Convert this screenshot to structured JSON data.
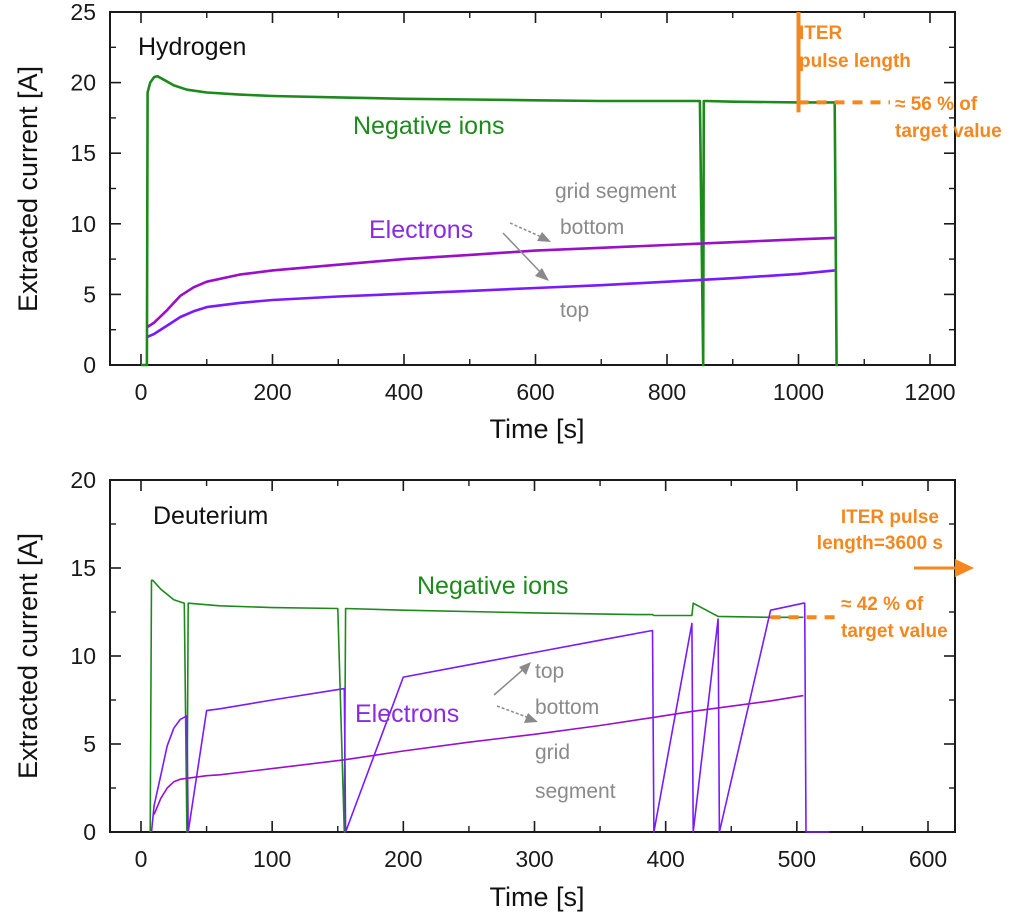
{
  "colors": {
    "negative_ions": "#1e8a1e",
    "electrons_bottom": "#9a0fc8",
    "electrons_top": "#7a1aff",
    "electrons_label": "#8a2be2",
    "grey_annotation": "#8a8a8a",
    "iter": "#f5871f",
    "axis": "#1a1a1a"
  },
  "chart_data": [
    {
      "type": "line",
      "panel_title": "Hydrogen",
      "xlabel": "Time [s]",
      "ylabel": "Extracted current [A]",
      "xlim": [
        -40,
        1260
      ],
      "ylim": [
        0,
        25
      ],
      "xticks": [
        0,
        200,
        400,
        600,
        800,
        1000,
        1200
      ],
      "xticks_minor": [
        100,
        300,
        500,
        700,
        900,
        1100
      ],
      "yticks": [
        0,
        5,
        10,
        15,
        20,
        25
      ],
      "yticks_minor": [
        2.5,
        7.5,
        12.5,
        17.5,
        22.5
      ],
      "grid": false,
      "series": [
        {
          "name": "Negative ions",
          "color_key": "negative_ions",
          "x": [
            0,
            9,
            10,
            14,
            20,
            25,
            35,
            50,
            70,
            100,
            150,
            200,
            300,
            400,
            500,
            600,
            700,
            800,
            850,
            855,
            856,
            860,
            900,
            1000,
            1055,
            1058,
            1060
          ],
          "y": [
            0,
            0,
            19.3,
            20.0,
            20.4,
            20.45,
            20.2,
            19.8,
            19.5,
            19.3,
            19.15,
            19.05,
            18.95,
            18.85,
            18.8,
            18.75,
            18.7,
            18.7,
            18.7,
            0,
            18.7,
            18.7,
            18.65,
            18.6,
            18.6,
            0,
            0
          ]
        },
        {
          "name": "Electrons bottom",
          "color_key": "electrons_bottom",
          "x": [
            10,
            20,
            40,
            60,
            80,
            100,
            150,
            200,
            300,
            400,
            500,
            600,
            700,
            800,
            900,
            1000,
            1055
          ],
          "y": [
            2.7,
            3.0,
            3.9,
            4.9,
            5.5,
            5.9,
            6.4,
            6.7,
            7.1,
            7.5,
            7.8,
            8.1,
            8.3,
            8.5,
            8.7,
            8.9,
            9.0
          ]
        },
        {
          "name": "Electrons top",
          "color_key": "electrons_top",
          "x": [
            10,
            20,
            40,
            60,
            80,
            100,
            150,
            200,
            300,
            400,
            500,
            600,
            700,
            800,
            900,
            1000,
            1055
          ],
          "y": [
            2.0,
            2.2,
            2.8,
            3.4,
            3.8,
            4.1,
            4.4,
            4.6,
            4.85,
            5.05,
            5.25,
            5.45,
            5.65,
            5.9,
            6.15,
            6.45,
            6.7
          ]
        }
      ],
      "annotations": {
        "negative_ions_label": "Negative ions",
        "electrons_label": "Electrons",
        "grid_segment_label": "grid segment",
        "bottom_label": "bottom",
        "top_label": "top",
        "iter_line1": "ITER",
        "iter_line2": "pulse length",
        "iter_pulse_length_s": 1000,
        "target_line1": "≈ 56 % of",
        "target_line2": "target value",
        "target_fraction_percent": 56,
        "target_level_A": 18.6
      }
    },
    {
      "type": "line",
      "panel_title": "Deuterium",
      "xlabel": "Time [s]",
      "ylabel": "Extracted current [A]",
      "xlim": [
        -20,
        630
      ],
      "ylim": [
        0,
        20
      ],
      "xticks": [
        0,
        100,
        200,
        300,
        400,
        500,
        600
      ],
      "xticks_minor": [
        50,
        150,
        250,
        350,
        450,
        550
      ],
      "yticks": [
        0,
        5,
        10,
        15,
        20
      ],
      "yticks_minor": [
        2.5,
        7.5,
        12.5,
        17.5
      ],
      "grid": false,
      "series": [
        {
          "name": "Negative ions",
          "color_key": "negative_ions",
          "x": [
            7,
            8,
            9,
            15,
            25,
            33,
            35,
            36,
            60,
            100,
            150,
            155,
            156,
            200,
            300,
            380,
            390,
            391,
            400,
            420,
            421,
            440,
            480,
            505
          ],
          "y": [
            0,
            14.3,
            14.3,
            13.8,
            13.2,
            13.0,
            0,
            13.0,
            12.85,
            12.75,
            12.7,
            0,
            12.7,
            12.6,
            12.45,
            12.35,
            12.35,
            12.3,
            12.3,
            12.3,
            13.0,
            12.25,
            12.2,
            12.2
          ]
        },
        {
          "name": "Electrons top",
          "color_key": "electrons_top",
          "x": [
            8,
            10,
            15,
            20,
            25,
            30,
            35,
            36,
            50,
            60,
            100,
            155,
            156,
            200,
            250,
            300,
            350,
            390,
            391,
            420,
            421,
            440,
            441,
            480,
            505,
            506,
            507,
            525
          ],
          "y": [
            0,
            1.5,
            3.2,
            4.9,
            5.9,
            6.4,
            6.6,
            0,
            6.9,
            7.0,
            7.5,
            8.15,
            0,
            8.8,
            9.5,
            10.2,
            10.9,
            11.45,
            0,
            11.85,
            0,
            12.1,
            0,
            12.6,
            13.0,
            13.0,
            0,
            0
          ]
        },
        {
          "name": "Electrons bottom",
          "color_key": "electrons_bottom",
          "x": [
            10,
            15,
            20,
            25,
            30,
            35,
            50,
            60,
            100,
            155,
            200,
            250,
            300,
            350,
            390,
            420,
            440,
            480,
            505
          ],
          "y": [
            1.0,
            1.9,
            2.5,
            2.85,
            3.0,
            3.05,
            3.2,
            3.25,
            3.6,
            4.1,
            4.6,
            5.1,
            5.55,
            6.05,
            6.5,
            6.85,
            7.05,
            7.45,
            7.75
          ]
        }
      ],
      "annotations": {
        "negative_ions_label": "Negative ions",
        "electrons_label": "Electrons",
        "top_label": "top",
        "bottom_label": "bottom",
        "grid_label": "grid",
        "segment_label": "segment",
        "iter_line1": "ITER pulse",
        "iter_line2": "length=3600 s",
        "iter_pulse_length_s": 3600,
        "target_line1": "≈ 42 % of",
        "target_line2": "target value",
        "target_fraction_percent": 42,
        "target_level_A": 12.2
      }
    }
  ]
}
